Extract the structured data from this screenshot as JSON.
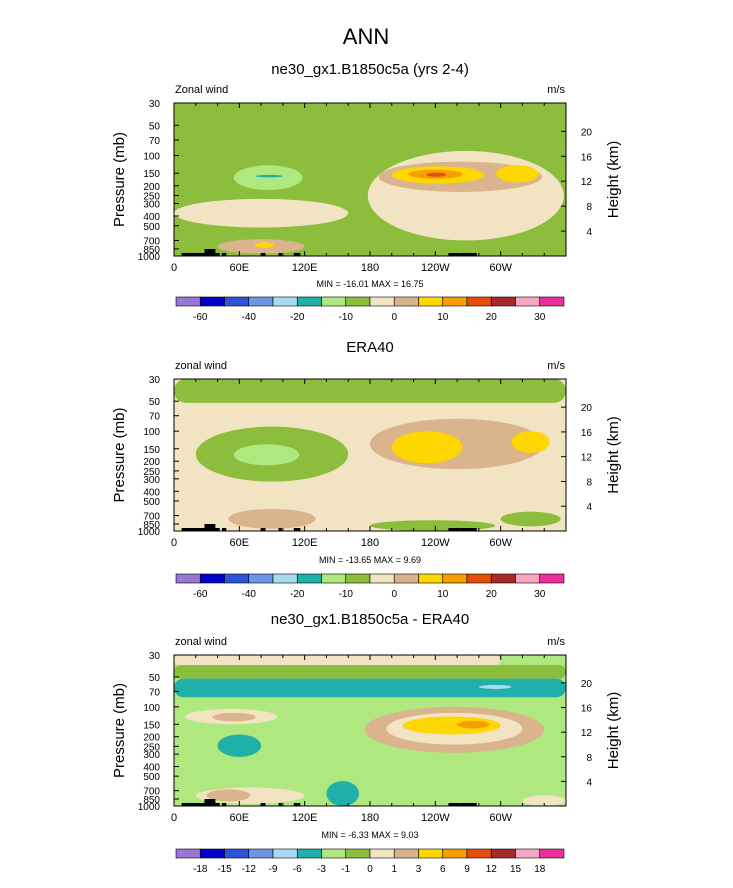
{
  "page": {
    "title": "ANN"
  },
  "colors": {
    "palette": [
      "#9876d4",
      "#0000c8",
      "#2c55d8",
      "#6d95e6",
      "#a6dcee",
      "#1fb0a8",
      "#aee87e",
      "#8cbd3c",
      "#f2e4c2",
      "#d9b48c",
      "#ffd700",
      "#f5a000",
      "#e64d0a",
      "#a52a2a",
      "#f4a6c2",
      "#ec2f9c"
    ],
    "coast": "#000000"
  },
  "chart_data": [
    {
      "type": "contour",
      "title": "ne30_gx1.B1850c5a (yrs 2-4)",
      "left_label": "Zonal wind",
      "right_label": "m/s",
      "ylabel": "Pressure (mb)",
      "ylabel_right": "Height (km)",
      "x_tick_labels": [
        "0",
        "60E",
        "120E",
        "180",
        "120W",
        "60W"
      ],
      "x_range": [
        0,
        360
      ],
      "y_tick_labels": [
        "30",
        "50",
        "70",
        "100",
        "150",
        "200",
        "250",
        "300",
        "400",
        "500",
        "700",
        "850",
        "1000"
      ],
      "y_right_tick_labels": [
        "20",
        "16",
        "12",
        "8",
        "4"
      ],
      "stats": "MIN = -16.01  MAX =  16.75",
      "colorbar_labels": [
        "-60",
        "-40",
        "-20",
        "-10",
        "0",
        "10",
        "20",
        "30"
      ],
      "contour_levels": [
        -70,
        -60,
        -50,
        -40,
        -30,
        -20,
        -15,
        -10,
        -5,
        0,
        5,
        10,
        15,
        20,
        25,
        30
      ],
      "features": [
        {
          "kind": "background",
          "level_index": 7
        },
        {
          "kind": "region",
          "level_index": 8,
          "lon": [
            178,
            358
          ],
          "p": [
            90,
            700
          ]
        },
        {
          "kind": "region",
          "level_index": 9,
          "lon": [
            188,
            338
          ],
          "p": [
            115,
            230
          ]
        },
        {
          "kind": "region",
          "level_index": 10,
          "lon": [
            200,
            285
          ],
          "p": [
            128,
            190
          ]
        },
        {
          "kind": "region",
          "level_index": 11,
          "lon": [
            215,
            265
          ],
          "p": [
            138,
            170
          ]
        },
        {
          "kind": "region",
          "level_index": 12,
          "lon": [
            232,
            250
          ],
          "p": [
            148,
            163
          ]
        },
        {
          "kind": "region",
          "level_index": 10,
          "lon": [
            296,
            335
          ],
          "p": [
            125,
            185
          ]
        },
        {
          "kind": "region",
          "level_index": 6,
          "lon": [
            55,
            118
          ],
          "p": [
            125,
            220
          ]
        },
        {
          "kind": "region",
          "level_index": 5,
          "lon": [
            75,
            100
          ],
          "p": [
            156,
            165
          ]
        },
        {
          "kind": "region",
          "level_index": 8,
          "lon": [
            0,
            160
          ],
          "p": [
            270,
            520
          ]
        },
        {
          "kind": "region",
          "level_index": 9,
          "lon": [
            40,
            120
          ],
          "p": [
            680,
            950
          ]
        },
        {
          "kind": "region",
          "level_index": 10,
          "lon": [
            74,
            92
          ],
          "p": [
            730,
            830
          ]
        }
      ]
    },
    {
      "type": "contour",
      "title": "ERA40",
      "left_label": "zonal wind",
      "right_label": "m/s",
      "ylabel": "Pressure (mb)",
      "ylabel_right": "Height (km)",
      "x_tick_labels": [
        "0",
        "60E",
        "120E",
        "180",
        "120W",
        "60W"
      ],
      "x_range": [
        0,
        360
      ],
      "y_tick_labels": [
        "30",
        "50",
        "70",
        "100",
        "150",
        "200",
        "250",
        "300",
        "400",
        "500",
        "700",
        "850",
        "1000"
      ],
      "y_right_tick_labels": [
        "20",
        "16",
        "12",
        "8",
        "4"
      ],
      "stats": "MIN = -13.65  MAX =  9.69",
      "colorbar_labels": [
        "-60",
        "-40",
        "-20",
        "-10",
        "0",
        "10",
        "20",
        "30"
      ],
      "contour_levels": [
        -70,
        -60,
        -50,
        -40,
        -30,
        -20,
        -15,
        -10,
        -5,
        0,
        5,
        10,
        15,
        20,
        25,
        30
      ],
      "features": [
        {
          "kind": "background",
          "level_index": 8
        },
        {
          "kind": "region",
          "level_index": 7,
          "lon": [
            0,
            360
          ],
          "p": [
            30,
            52
          ]
        },
        {
          "kind": "region",
          "level_index": 7,
          "lon": [
            20,
            160
          ],
          "p": [
            90,
            320
          ]
        },
        {
          "kind": "region",
          "level_index": 6,
          "lon": [
            55,
            115
          ],
          "p": [
            135,
            220
          ]
        },
        {
          "kind": "region",
          "level_index": 9,
          "lon": [
            180,
            340
          ],
          "p": [
            75,
            240
          ]
        },
        {
          "kind": "region",
          "level_index": 10,
          "lon": [
            200,
            265
          ],
          "p": [
            100,
            210
          ]
        },
        {
          "kind": "region",
          "level_index": 10,
          "lon": [
            310,
            345
          ],
          "p": [
            100,
            165
          ]
        },
        {
          "kind": "region",
          "level_index": 9,
          "lon": [
            50,
            130
          ],
          "p": [
            600,
            950
          ]
        },
        {
          "kind": "region",
          "level_index": 7,
          "lon": [
            180,
            295
          ],
          "p": [
            780,
            1000
          ]
        },
        {
          "kind": "region",
          "level_index": 7,
          "lon": [
            300,
            355
          ],
          "p": [
            640,
            900
          ]
        }
      ]
    },
    {
      "type": "contour",
      "title": "ne30_gx1.B1850c5a - ERA40",
      "left_label": "zonal wind",
      "right_label": "m/s",
      "ylabel": "Pressure (mb)",
      "ylabel_right": "Height (km)",
      "x_tick_labels": [
        "0",
        "60E",
        "120E",
        "180",
        "120W",
        "60W"
      ],
      "x_range": [
        0,
        360
      ],
      "y_tick_labels": [
        "30",
        "50",
        "70",
        "100",
        "150",
        "200",
        "250",
        "300",
        "400",
        "500",
        "700",
        "850",
        "1000"
      ],
      "y_right_tick_labels": [
        "20",
        "16",
        "12",
        "8",
        "4"
      ],
      "stats": "MIN = -6.33  MAX =  9.03",
      "colorbar_labels": [
        "-18",
        "-15",
        "-12",
        "-9",
        "-6",
        "-3",
        "-1",
        "0",
        "1",
        "3",
        "6",
        "9",
        "12",
        "15",
        "18"
      ],
      "contour_levels": [
        -21,
        -18,
        -15,
        -12,
        -9,
        -6,
        -3,
        -1,
        0,
        1,
        3,
        6,
        9,
        12,
        15,
        18
      ],
      "features": [
        {
          "kind": "background",
          "level_index": 6
        },
        {
          "kind": "region",
          "level_index": 8,
          "lon": [
            0,
            300
          ],
          "p": [
            30,
            38
          ]
        },
        {
          "kind": "region",
          "level_index": 7,
          "lon": [
            0,
            360
          ],
          "p": [
            38,
            52
          ]
        },
        {
          "kind": "region",
          "level_index": 5,
          "lon": [
            0,
            360
          ],
          "p": [
            52,
            80
          ]
        },
        {
          "kind": "region",
          "level_index": 4,
          "lon": [
            280,
            310
          ],
          "p": [
            60,
            66
          ]
        },
        {
          "kind": "region",
          "level_index": 8,
          "lon": [
            10,
            95
          ],
          "p": [
            105,
            150
          ]
        },
        {
          "kind": "region",
          "level_index": 9,
          "lon": [
            35,
            75
          ],
          "p": [
            115,
            140
          ]
        },
        {
          "kind": "region",
          "level_index": 9,
          "lon": [
            175,
            340
          ],
          "p": [
            100,
            290
          ]
        },
        {
          "kind": "region",
          "level_index": 8,
          "lon": [
            195,
            320
          ],
          "p": [
            115,
            240
          ]
        },
        {
          "kind": "region",
          "level_index": 10,
          "lon": [
            210,
            300
          ],
          "p": [
            125,
            190
          ]
        },
        {
          "kind": "region",
          "level_index": 11,
          "lon": [
            260,
            290
          ],
          "p": [
            138,
            165
          ]
        },
        {
          "kind": "region",
          "level_index": 5,
          "lon": [
            40,
            80
          ],
          "p": [
            190,
            320
          ]
        },
        {
          "kind": "region",
          "level_index": 5,
          "lon": [
            140,
            170
          ],
          "p": [
            560,
            1000
          ]
        },
        {
          "kind": "region",
          "level_index": 8,
          "lon": [
            20,
            120
          ],
          "p": [
            650,
            950
          ]
        },
        {
          "kind": "region",
          "level_index": 9,
          "lon": [
            30,
            70
          ],
          "p": [
            680,
            900
          ]
        },
        {
          "kind": "region",
          "level_index": 8,
          "lon": [
            320,
            360
          ],
          "p": [
            780,
            1000
          ]
        }
      ]
    }
  ]
}
